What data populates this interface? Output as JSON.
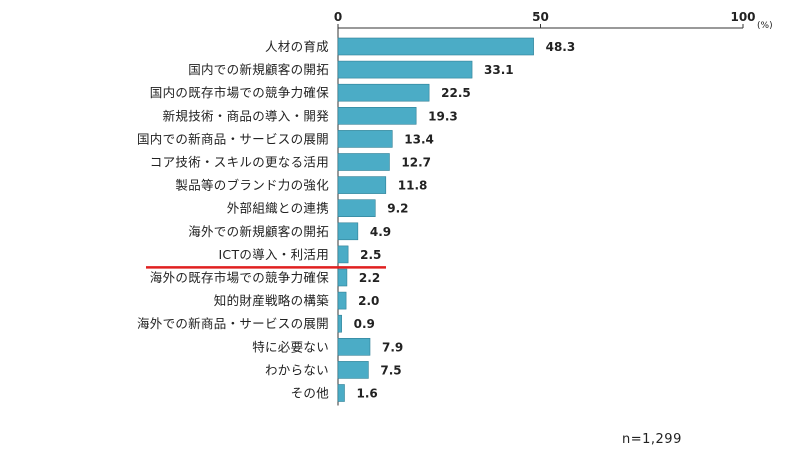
{
  "chart_data": {
    "type": "bar",
    "orientation": "horizontal",
    "categories": [
      "人材の育成",
      "国内での新規顧客の開拓",
      "国内の既存市場での競争力確保",
      "新規技術・商品の導入・開発",
      "国内での新商品・サービスの展開",
      "コア技術・スキルの更なる活用",
      "製品等のブランド力の強化",
      "外部組織との連携",
      "海外での新規顧客の開拓",
      "ICTの導入・利活用",
      "海外の既存市場での競争力確保",
      "知的財産戦略の構築",
      "海外での新商品・サービスの展開",
      "特に必要ない",
      "わからない",
      "その他"
    ],
    "values": [
      48.3,
      33.1,
      22.5,
      19.3,
      13.4,
      12.7,
      11.8,
      9.2,
      4.9,
      2.5,
      2.2,
      2.0,
      0.9,
      7.9,
      7.5,
      1.6
    ],
    "value_labels": [
      "48.3",
      "33.1",
      "22.5",
      "19.3",
      "13.4",
      "12.7",
      "11.8",
      "9.2",
      "4.9",
      "2.5",
      "2.2",
      "2.0",
      "0.9",
      "7.9",
      "7.5",
      "1.6"
    ],
    "xlim": [
      0,
      100
    ],
    "ticks": [
      "0",
      "50",
      "100"
    ],
    "unit": "(%)",
    "sample_size": "n=1,299",
    "highlight_category": "ICTの導入・利活用",
    "bar_color": "#4bacc6",
    "highlight_underline_color": "#e02020",
    "grid": false
  }
}
